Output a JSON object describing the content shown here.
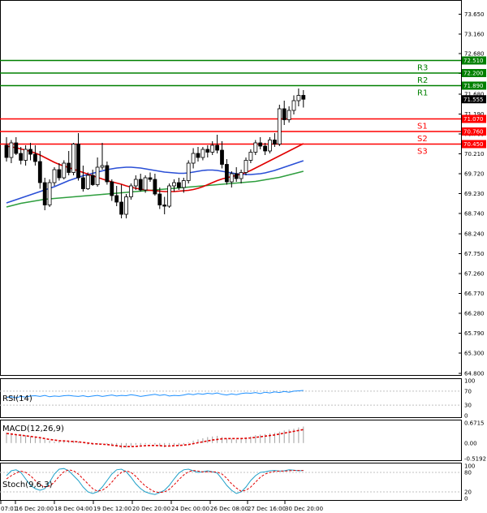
{
  "chart_data": {
    "type": "candlestick",
    "main": {
      "y_ticks": [
        "73.650",
        "73.160",
        "72.680",
        "72.190",
        "71.680",
        "71.190",
        "70.700",
        "70.210",
        "69.720",
        "69.230",
        "68.740",
        "68.240",
        "67.750",
        "67.260",
        "66.770",
        "66.280",
        "65.790",
        "65.300",
        "64.800"
      ],
      "ylim": [
        64.8,
        73.92
      ],
      "levels": [
        {
          "name": "R3",
          "value": 72.51,
          "badge": "72.510",
          "color": "#008000"
        },
        {
          "name": "R2",
          "value": 72.2,
          "badge": "72.200",
          "color": "#008000"
        },
        {
          "name": "R1",
          "value": 71.89,
          "badge": "71.890",
          "color": "#008000"
        },
        {
          "name": "S1",
          "value": 71.07,
          "badge": "71.070",
          "color": "#ff0000"
        },
        {
          "name": "S2",
          "value": 70.76,
          "badge": "70.760",
          "color": "#ff0000"
        },
        {
          "name": "S3",
          "value": 70.45,
          "badge": "70.450",
          "color": "#ff0000"
        }
      ],
      "current_price": "71.555",
      "candles": [
        {
          "o": 70.42,
          "h": 70.62,
          "l": 70.02,
          "c": 70.12
        },
        {
          "o": 70.12,
          "h": 70.55,
          "l": 69.98,
          "c": 70.48
        },
        {
          "o": 70.48,
          "h": 70.62,
          "l": 70.18,
          "c": 70.22
        },
        {
          "o": 70.22,
          "h": 70.38,
          "l": 69.95,
          "c": 70.05
        },
        {
          "o": 70.05,
          "h": 70.42,
          "l": 69.92,
          "c": 70.32
        },
        {
          "o": 70.32,
          "h": 70.48,
          "l": 70.05,
          "c": 70.2
        },
        {
          "o": 70.2,
          "h": 70.42,
          "l": 69.92,
          "c": 70.02
        },
        {
          "o": 70.02,
          "h": 70.28,
          "l": 69.35,
          "c": 69.5
        },
        {
          "o": 69.5,
          "h": 69.62,
          "l": 68.82,
          "c": 68.95
        },
        {
          "o": 68.95,
          "h": 69.58,
          "l": 68.9,
          "c": 69.5
        },
        {
          "o": 69.5,
          "h": 69.88,
          "l": 69.42,
          "c": 69.82
        },
        {
          "o": 69.82,
          "h": 69.98,
          "l": 69.55,
          "c": 69.62
        },
        {
          "o": 69.62,
          "h": 70.05,
          "l": 69.58,
          "c": 69.98
        },
        {
          "o": 69.98,
          "h": 70.28,
          "l": 69.68,
          "c": 69.75
        },
        {
          "o": 69.75,
          "h": 70.48,
          "l": 69.68,
          "c": 70.45
        },
        {
          "o": 70.45,
          "h": 70.72,
          "l": 69.55,
          "c": 69.62
        },
        {
          "o": 69.62,
          "h": 69.92,
          "l": 69.28,
          "c": 69.35
        },
        {
          "o": 69.35,
          "h": 69.75,
          "l": 69.32,
          "c": 69.68
        },
        {
          "o": 69.68,
          "h": 69.82,
          "l": 69.42,
          "c": 69.45
        },
        {
          "o": 69.45,
          "h": 70.12,
          "l": 69.4,
          "c": 69.88
        },
        {
          "o": 69.88,
          "h": 70.48,
          "l": 69.82,
          "c": 69.92
        },
        {
          "o": 69.92,
          "h": 70.02,
          "l": 69.45,
          "c": 69.52
        },
        {
          "o": 69.52,
          "h": 69.58,
          "l": 69.05,
          "c": 69.18
        },
        {
          "o": 69.18,
          "h": 69.42,
          "l": 68.92,
          "c": 69.02
        },
        {
          "o": 69.02,
          "h": 69.45,
          "l": 68.62,
          "c": 68.72
        },
        {
          "o": 68.72,
          "h": 69.22,
          "l": 68.62,
          "c": 69.15
        },
        {
          "o": 69.15,
          "h": 69.48,
          "l": 69.08,
          "c": 69.42
        },
        {
          "o": 69.42,
          "h": 69.68,
          "l": 69.32,
          "c": 69.58
        },
        {
          "o": 69.58,
          "h": 69.72,
          "l": 69.28,
          "c": 69.32
        },
        {
          "o": 69.32,
          "h": 69.68,
          "l": 69.25,
          "c": 69.62
        },
        {
          "o": 69.62,
          "h": 69.75,
          "l": 69.52,
          "c": 69.58
        },
        {
          "o": 69.58,
          "h": 69.72,
          "l": 69.18,
          "c": 69.22
        },
        {
          "o": 69.22,
          "h": 69.38,
          "l": 68.85,
          "c": 68.95
        },
        {
          "o": 68.95,
          "h": 69.15,
          "l": 68.72,
          "c": 68.92
        },
        {
          "o": 68.92,
          "h": 69.48,
          "l": 68.88,
          "c": 69.42
        },
        {
          "o": 69.42,
          "h": 69.58,
          "l": 69.28,
          "c": 69.5
        },
        {
          "o": 69.5,
          "h": 69.62,
          "l": 69.32,
          "c": 69.38
        },
        {
          "o": 69.38,
          "h": 69.62,
          "l": 69.25,
          "c": 69.55
        },
        {
          "o": 69.55,
          "h": 70.05,
          "l": 69.48,
          "c": 69.98
        },
        {
          "o": 69.98,
          "h": 70.35,
          "l": 69.85,
          "c": 70.22
        },
        {
          "o": 70.22,
          "h": 70.38,
          "l": 70.02,
          "c": 70.12
        },
        {
          "o": 70.12,
          "h": 70.38,
          "l": 70.05,
          "c": 70.32
        },
        {
          "o": 70.32,
          "h": 70.42,
          "l": 70.12,
          "c": 70.25
        },
        {
          "o": 70.25,
          "h": 70.52,
          "l": 70.18,
          "c": 70.42
        },
        {
          "o": 70.42,
          "h": 70.68,
          "l": 70.22,
          "c": 70.3
        },
        {
          "o": 70.3,
          "h": 70.52,
          "l": 69.85,
          "c": 69.95
        },
        {
          "o": 69.95,
          "h": 70.08,
          "l": 69.45,
          "c": 69.52
        },
        {
          "o": 69.52,
          "h": 69.78,
          "l": 69.38,
          "c": 69.72
        },
        {
          "o": 69.72,
          "h": 69.88,
          "l": 69.52,
          "c": 69.6
        },
        {
          "o": 69.6,
          "h": 69.82,
          "l": 69.48,
          "c": 69.75
        },
        {
          "o": 69.75,
          "h": 70.12,
          "l": 69.68,
          "c": 70.05
        },
        {
          "o": 70.05,
          "h": 70.32,
          "l": 69.98,
          "c": 70.25
        },
        {
          "o": 70.25,
          "h": 70.55,
          "l": 70.18,
          "c": 70.48
        },
        {
          "o": 70.48,
          "h": 70.62,
          "l": 70.32,
          "c": 70.4
        },
        {
          "o": 70.4,
          "h": 70.48,
          "l": 70.18,
          "c": 70.28
        },
        {
          "o": 70.28,
          "h": 70.62,
          "l": 70.22,
          "c": 70.55
        },
        {
          "o": 70.55,
          "h": 70.72,
          "l": 70.38,
          "c": 70.45
        },
        {
          "o": 70.45,
          "h": 71.42,
          "l": 70.4,
          "c": 71.32
        },
        {
          "o": 71.32,
          "h": 71.52,
          "l": 70.92,
          "c": 71.05
        },
        {
          "o": 71.05,
          "h": 71.38,
          "l": 70.98,
          "c": 71.28
        },
        {
          "o": 71.28,
          "h": 71.65,
          "l": 71.18,
          "c": 71.52
        },
        {
          "o": 71.52,
          "h": 71.82,
          "l": 71.38,
          "c": 71.65
        },
        {
          "o": 71.65,
          "h": 71.78,
          "l": 71.35,
          "c": 71.555
        }
      ],
      "ma_red": [
        70.4,
        70.38,
        70.36,
        70.33,
        70.3,
        70.27,
        70.23,
        70.18,
        70.12,
        70.06,
        70.0,
        69.95,
        69.91,
        69.87,
        69.83,
        69.79,
        69.75,
        69.71,
        69.67,
        69.63,
        69.59,
        69.55,
        69.52,
        69.49,
        69.46,
        69.42,
        69.39,
        69.36,
        69.34,
        69.32,
        69.31,
        69.3,
        69.29,
        69.28,
        69.28,
        69.28,
        69.29,
        69.3,
        69.31,
        69.33,
        69.36,
        69.4,
        69.45,
        69.5,
        69.55,
        69.59,
        69.62,
        69.65,
        69.68,
        69.71,
        69.75,
        69.8,
        69.86,
        69.92,
        69.98,
        70.04,
        70.1,
        70.16,
        70.22,
        70.28,
        70.34,
        70.4,
        70.46
      ],
      "ma_blue": [
        69.0,
        69.04,
        69.08,
        69.12,
        69.16,
        69.2,
        69.24,
        69.28,
        69.32,
        69.36,
        69.4,
        69.45,
        69.5,
        69.55,
        69.59,
        69.63,
        69.67,
        69.7,
        69.73,
        69.76,
        69.79,
        69.82,
        69.84,
        69.86,
        69.87,
        69.88,
        69.88,
        69.87,
        69.86,
        69.84,
        69.82,
        69.8,
        69.78,
        69.76,
        69.75,
        69.74,
        69.73,
        69.73,
        69.74,
        69.76,
        69.78,
        69.8,
        69.81,
        69.81,
        69.8,
        69.78,
        69.76,
        69.74,
        69.72,
        69.71,
        69.7,
        69.7,
        69.71,
        69.72,
        69.74,
        69.77,
        69.8,
        69.84,
        69.88,
        69.92,
        69.96,
        70.0,
        70.04
      ],
      "ma_green": [
        68.9,
        68.93,
        68.96,
        68.99,
        69.01,
        69.03,
        69.05,
        69.07,
        69.09,
        69.1,
        69.11,
        69.12,
        69.13,
        69.14,
        69.15,
        69.16,
        69.17,
        69.18,
        69.19,
        69.2,
        69.21,
        69.22,
        69.23,
        69.24,
        69.25,
        69.26,
        69.27,
        69.28,
        69.29,
        69.3,
        69.31,
        69.32,
        69.33,
        69.34,
        69.35,
        69.36,
        69.37,
        69.38,
        69.39,
        69.4,
        69.41,
        69.42,
        69.43,
        69.44,
        69.45,
        69.46,
        69.47,
        69.48,
        69.49,
        69.5,
        69.51,
        69.52,
        69.53,
        69.55,
        69.57,
        69.59,
        69.61,
        69.63,
        69.66,
        69.69,
        69.72,
        69.75,
        69.78
      ]
    },
    "rsi": {
      "label": "RSI(14)",
      "ticks": [
        "100",
        "70",
        "30",
        "0"
      ],
      "values": [
        52,
        54,
        51,
        55,
        53,
        56,
        57,
        55,
        58,
        54,
        56,
        55,
        57,
        58,
        56,
        55,
        57,
        54,
        56,
        58,
        55,
        57,
        59,
        56,
        58,
        57,
        60,
        58,
        55,
        57,
        59,
        61,
        58,
        60,
        56,
        58,
        57,
        59,
        62,
        60,
        63,
        61,
        64,
        62,
        65,
        61,
        59,
        62,
        60,
        63,
        65,
        64,
        66,
        63,
        67,
        65,
        68,
        66,
        69,
        67,
        70,
        71,
        72
      ]
    },
    "macd": {
      "label": "MACD(12,26,9)",
      "ticks": [
        "0.6715",
        "0.00",
        "-0.5192"
      ],
      "hist": [
        0.35,
        0.32,
        0.28,
        0.3,
        0.26,
        0.22,
        0.2,
        0.18,
        0.12,
        0.08,
        0.05,
        0.06,
        0.05,
        0.06,
        0.08,
        0.04,
        0.0,
        -0.05,
        -0.06,
        -0.05,
        -0.02,
        -0.04,
        -0.1,
        -0.12,
        -0.18,
        -0.15,
        -0.1,
        -0.06,
        -0.08,
        -0.04,
        -0.02,
        -0.05,
        -0.1,
        -0.14,
        -0.1,
        -0.06,
        -0.08,
        -0.05,
        0.02,
        0.08,
        0.12,
        0.16,
        0.2,
        0.22,
        0.24,
        0.2,
        0.15,
        0.14,
        0.12,
        0.14,
        0.18,
        0.22,
        0.26,
        0.28,
        0.3,
        0.32,
        0.34,
        0.38,
        0.42,
        0.45,
        0.48,
        0.52,
        0.55
      ],
      "signal": [
        0.32,
        0.3,
        0.28,
        0.26,
        0.24,
        0.22,
        0.2,
        0.18,
        0.15,
        0.12,
        0.1,
        0.08,
        0.07,
        0.06,
        0.05,
        0.04,
        0.02,
        0.0,
        -0.02,
        -0.03,
        -0.04,
        -0.05,
        -0.07,
        -0.09,
        -0.11,
        -0.12,
        -0.12,
        -0.11,
        -0.1,
        -0.09,
        -0.08,
        -0.08,
        -0.09,
        -0.1,
        -0.1,
        -0.09,
        -0.08,
        -0.07,
        -0.05,
        -0.02,
        0.01,
        0.04,
        0.07,
        0.1,
        0.12,
        0.14,
        0.15,
        0.15,
        0.15,
        0.15,
        0.16,
        0.17,
        0.19,
        0.21,
        0.23,
        0.25,
        0.27,
        0.3,
        0.33,
        0.36,
        0.39,
        0.42,
        0.45
      ]
    },
    "stoch": {
      "label": "Stoch(9,6,3)",
      "ticks": [
        "100",
        "80",
        "20",
        "0"
      ],
      "k": [
        70,
        85,
        88,
        80,
        60,
        40,
        30,
        25,
        30,
        50,
        75,
        90,
        92,
        85,
        70,
        55,
        35,
        20,
        15,
        20,
        35,
        55,
        75,
        88,
        90,
        82,
        65,
        45,
        30,
        20,
        15,
        12,
        18,
        25,
        40,
        60,
        78,
        88,
        90,
        85,
        80,
        82,
        85,
        82,
        78,
        60,
        40,
        25,
        15,
        20,
        35,
        55,
        70,
        80,
        82,
        85,
        86,
        84,
        85,
        88,
        87,
        85,
        86
      ],
      "d": [
        60,
        70,
        78,
        84,
        80,
        70,
        55,
        42,
        35,
        38,
        50,
        68,
        82,
        88,
        85,
        75,
        60,
        45,
        30,
        22,
        25,
        35,
        50,
        68,
        80,
        85,
        80,
        68,
        52,
        38,
        28,
        20,
        18,
        20,
        28,
        42,
        58,
        72,
        82,
        86,
        84,
        82,
        82,
        82,
        81,
        75,
        62,
        45,
        32,
        22,
        25,
        35,
        50,
        65,
        75,
        80,
        83,
        84,
        84,
        85,
        86,
        86,
        86
      ]
    },
    "x_labels": [
      "07:01",
      "16 Dec 20:00",
      "18 Dec 04:00",
      "19 Dec 12:00",
      "20 Dec 20:00",
      "24 Dec 00:00",
      "26 Dec 08:00",
      "27 Dec 16:00",
      "30 Dec 20:00"
    ]
  }
}
